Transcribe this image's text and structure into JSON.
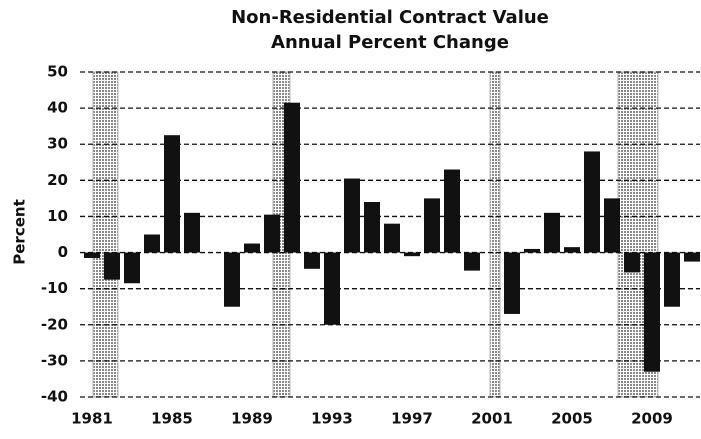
{
  "chart_data": {
    "type": "bar",
    "title": "Non-Residential Contract Value",
    "subtitle": "Annual Percent Change",
    "y_label": "Percent",
    "x": [
      1981,
      1982,
      1983,
      1984,
      1985,
      1986,
      1987,
      1988,
      1989,
      1990,
      1991,
      1992,
      1993,
      1994,
      1995,
      1996,
      1997,
      1998,
      1999,
      2000,
      2001,
      2002,
      2003,
      2004,
      2005,
      2006,
      2007,
      2008,
      2009,
      2010,
      2011
    ],
    "values": [
      -1.5,
      -7.5,
      -8.5,
      5,
      32.5,
      11,
      0,
      -15,
      2.5,
      10.5,
      41.5,
      -4.5,
      -20,
      20.5,
      14,
      8,
      -1,
      15,
      23,
      -5,
      0,
      -17,
      1,
      11,
      1.5,
      28,
      15,
      -5.5,
      -33,
      -15,
      -2.5
    ],
    "color": "#111111",
    "shaded_periods": [
      [
        1981.05,
        1982.3
      ],
      [
        1990.05,
        1990.9
      ],
      [
        2000.9,
        2001.4
      ],
      [
        2007.3,
        2009.3
      ]
    ],
    "shade_color": "#b8b8b8",
    "xlim": [
      1980.4,
      2011.4
    ],
    "xticks": [
      1981,
      1985,
      1989,
      1993,
      1997,
      2001,
      2005,
      2009
    ],
    "ylim": [
      -40,
      50
    ],
    "yticks": [
      -40,
      -30,
      -20,
      -10,
      0,
      10,
      20,
      30,
      40,
      50
    ],
    "grid": true
  }
}
